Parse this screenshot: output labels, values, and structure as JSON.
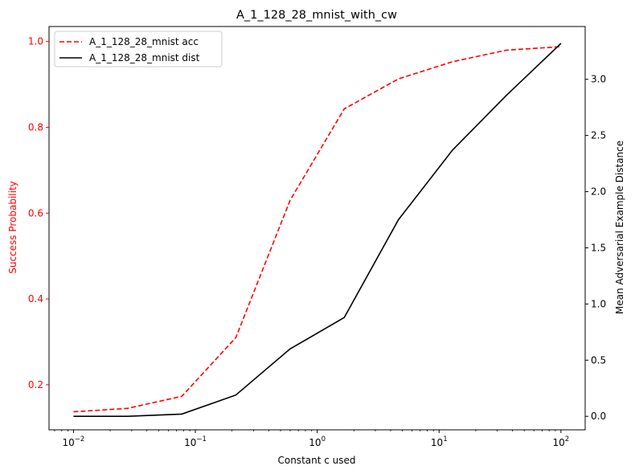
{
  "chart_data": {
    "type": "line",
    "title": "A_1_128_28_mnist_with_cw",
    "xlabel": "Constant c used",
    "ylabel_left": "Success Probability",
    "ylabel_right": "Mean Adversarial Example Distance",
    "x_scale": "log",
    "xlim": [
      0.0063,
      158
    ],
    "ylim_left": [
      0.095,
      1.035
    ],
    "ylim_right": [
      -0.12,
      3.47
    ],
    "x_ticks": [
      {
        "value": 0.01,
        "label_base": "10",
        "label_exp": "−2"
      },
      {
        "value": 0.1,
        "label_base": "10",
        "label_exp": "−1"
      },
      {
        "value": 1,
        "label_base": "10",
        "label_exp": "0"
      },
      {
        "value": 10,
        "label_base": "10",
        "label_exp": "1"
      },
      {
        "value": 100,
        "label_base": "10",
        "label_exp": "2"
      }
    ],
    "y_ticks_left": [
      "0.2",
      "0.4",
      "0.6",
      "0.8",
      "1.0"
    ],
    "y_ticks_right": [
      "0.0",
      "0.5",
      "1.0",
      "1.5",
      "2.0",
      "2.5",
      "3.0"
    ],
    "x": [
      0.01,
      0.0278,
      0.0774,
      0.215,
      0.599,
      1.668,
      4.64,
      12.9,
      35.9,
      100
    ],
    "series": [
      {
        "name": "A_1_128_28_mnist acc",
        "axis": "left",
        "style": "dashed",
        "color": "#ff0000",
        "values": [
          0.137,
          0.145,
          0.173,
          0.31,
          0.63,
          0.843,
          0.913,
          0.953,
          0.98,
          0.988
        ]
      },
      {
        "name": "A_1_128_28_mnist dist",
        "axis": "right",
        "style": "solid",
        "color": "#000000",
        "values": [
          0.0,
          0.0,
          0.02,
          0.19,
          0.6,
          0.88,
          1.75,
          2.37,
          2.86,
          3.32
        ]
      }
    ],
    "legend": "top-left",
    "grid": false,
    "left_axis_color": "#ff0000"
  }
}
